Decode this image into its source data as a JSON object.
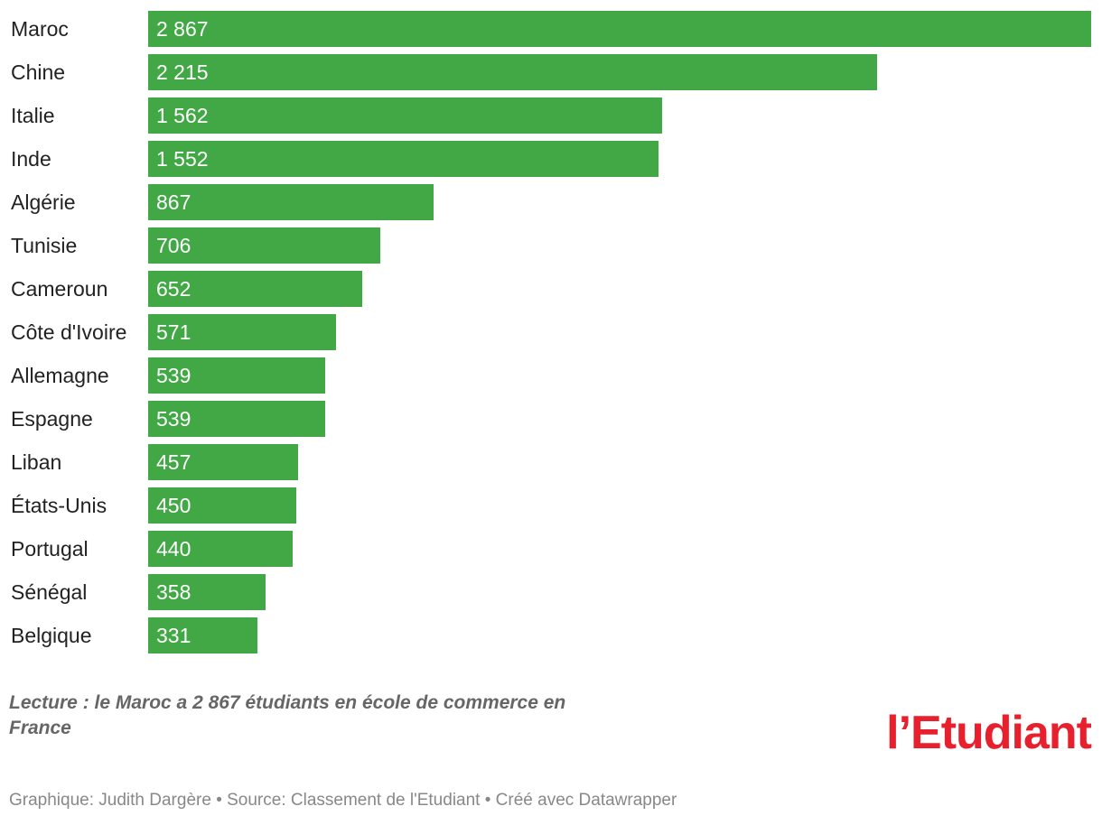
{
  "chart_data": {
    "type": "bar",
    "orientation": "horizontal",
    "categories": [
      "Maroc",
      "Chine",
      "Italie",
      "Inde",
      "Algérie",
      "Tunisie",
      "Cameroun",
      "Côte d'Ivoire",
      "Allemagne",
      "Espagne",
      "Liban",
      "États-Unis",
      "Portugal",
      "Sénégal",
      "Belgique"
    ],
    "values": [
      2867,
      2215,
      1562,
      1552,
      867,
      706,
      652,
      571,
      539,
      539,
      457,
      450,
      440,
      358,
      331
    ],
    "value_labels": [
      "2 867",
      "2 215",
      "1 562",
      "1 552",
      "867",
      "706",
      "652",
      "571",
      "539",
      "539",
      "457",
      "450",
      "440",
      "358",
      "331"
    ],
    "xlim": [
      0,
      2867
    ],
    "bar_color": "#41a845",
    "grid": false,
    "legend": "none"
  },
  "note": "Lecture : le Maroc a 2 867 étudiants en école de commerce en France",
  "logo": {
    "text": "l’Etudiant",
    "color": "#e8202e"
  },
  "footer": "Graphique: Judith Dargère • Source: Classement de l'Etudiant • Créé avec Datawrapper"
}
